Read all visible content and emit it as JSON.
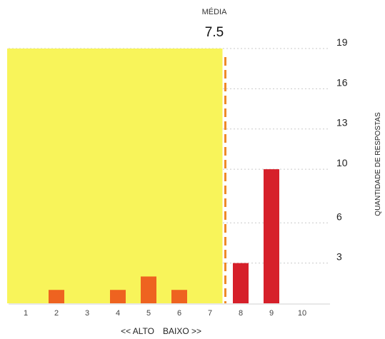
{
  "chart_data": {
    "type": "bar",
    "categories": [
      "1",
      "2",
      "3",
      "4",
      "5",
      "6",
      "7",
      "8",
      "9",
      "10"
    ],
    "values": [
      0,
      1,
      0,
      1,
      2,
      1,
      0,
      3,
      10,
      0
    ],
    "mean_label": "MÉDIA",
    "mean_value": "7.5",
    "mean": 7.5,
    "y_ticks": [
      "3",
      "6",
      "10",
      "13",
      "16",
      "19"
    ],
    "y_tick_values": [
      3,
      6,
      10,
      13,
      16,
      19
    ],
    "ylim": [
      0,
      19
    ],
    "grid": true,
    "xlabel_left": "<< ALTO",
    "xlabel_right": "BAIXO >>",
    "ylabel": "QUANTIDADE DE RESPOSTAS"
  },
  "colors": {
    "highlight_region": "#f8f45a",
    "bar_in_region": "#ee6320",
    "bar_out_region": "#d6202a",
    "mean_line": "#ee8a2a",
    "grid": "#c9c9c9",
    "axis": "#d0d0d0"
  }
}
